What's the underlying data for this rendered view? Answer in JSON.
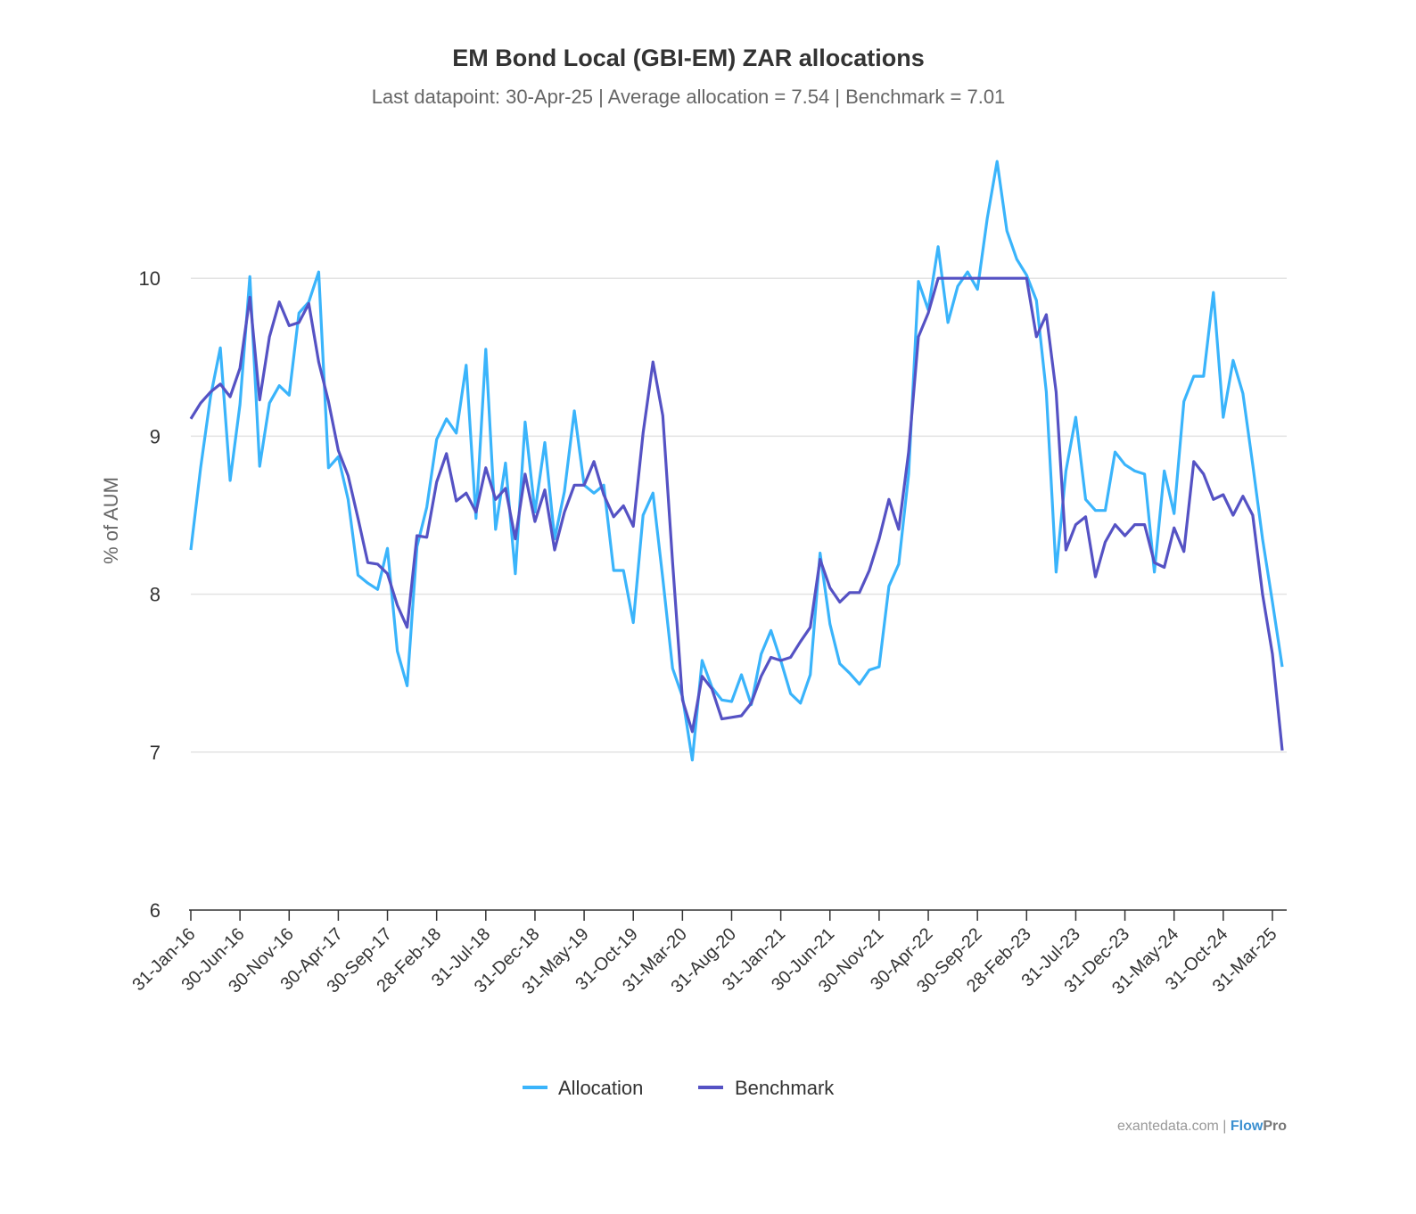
{
  "chart_data": {
    "type": "line",
    "title": "EM Bond Local (GBI-EM) ZAR allocations",
    "subtitle": "Last datapoint: 30-Apr-25 | Average allocation = 7.54 | Benchmark = 7.01",
    "xlabel": "",
    "ylabel": "% of AUM",
    "ylim": [
      6,
      11
    ],
    "yticks": [
      "6",
      "7",
      "8",
      "9",
      "10"
    ],
    "ytick_values": [
      6,
      7,
      8,
      9,
      10
    ],
    "xtick_labels": [
      "31-Jan-16",
      "30-Jun-16",
      "30-Nov-16",
      "30-Apr-17",
      "30-Sep-17",
      "28-Feb-18",
      "31-Jul-18",
      "31-Dec-18",
      "31-May-19",
      "31-Oct-19",
      "31-Mar-20",
      "31-Aug-20",
      "31-Jan-21",
      "30-Jun-21",
      "30-Nov-21",
      "30-Apr-22",
      "30-Sep-22",
      "28-Feb-23",
      "31-Jul-23",
      "31-Dec-23",
      "31-May-24",
      "31-Oct-24",
      "31-Mar-25"
    ],
    "xtick_every_n_points": 5,
    "x_range": "31-Jan-16 to 30-Apr-25 (monthly)",
    "grid": true,
    "legend_position": "bottom-center",
    "series": [
      {
        "name": "Allocation",
        "color": "#3ab4fb",
        "values": [
          8.28,
          8.8,
          9.25,
          9.56,
          8.72,
          9.2,
          10.01,
          8.81,
          9.21,
          9.32,
          9.26,
          9.78,
          9.85,
          10.04,
          8.8,
          8.87,
          8.6,
          8.12,
          8.07,
          8.03,
          8.29,
          7.64,
          7.42,
          8.3,
          8.55,
          8.98,
          9.11,
          9.02,
          9.45,
          8.48,
          9.55,
          8.41,
          8.83,
          8.13,
          9.09,
          8.52,
          8.96,
          8.35,
          8.65,
          9.16,
          8.69,
          8.64,
          8.69,
          8.15,
          8.15,
          7.82,
          8.5,
          8.64,
          8.1,
          7.53,
          7.35,
          6.95,
          7.58,
          7.41,
          7.33,
          7.32,
          7.49,
          7.3,
          7.62,
          7.77,
          7.58,
          7.37,
          7.31,
          7.49,
          8.26,
          7.81,
          7.56,
          7.5,
          7.43,
          7.52,
          7.54,
          8.05,
          8.19,
          8.76,
          9.98,
          9.8,
          10.2,
          9.72,
          9.95,
          10.04,
          9.93,
          10.38,
          10.74,
          10.3,
          10.12,
          10.02,
          9.86,
          9.28,
          8.14,
          8.78,
          9.12,
          8.6,
          8.53,
          8.53,
          8.9,
          8.82,
          8.78,
          8.76,
          8.14,
          8.78,
          8.51,
          9.22,
          9.38,
          9.38,
          9.91,
          9.12,
          9.48,
          9.27,
          8.82,
          8.35,
          7.95,
          7.54
        ]
      },
      {
        "name": "Benchmark",
        "color": "#5552c4",
        "values": [
          9.11,
          9.21,
          9.28,
          9.33,
          9.25,
          9.43,
          9.88,
          9.23,
          9.63,
          9.85,
          9.7,
          9.72,
          9.84,
          9.47,
          9.22,
          8.91,
          8.75,
          8.48,
          8.2,
          8.19,
          8.13,
          7.93,
          7.79,
          8.37,
          8.36,
          8.71,
          8.89,
          8.59,
          8.64,
          8.52,
          8.8,
          8.6,
          8.67,
          8.35,
          8.76,
          8.46,
          8.66,
          8.28,
          8.52,
          8.69,
          8.69,
          8.84,
          8.63,
          8.49,
          8.56,
          8.43,
          9.02,
          9.47,
          9.13,
          8.2,
          7.33,
          7.13,
          7.48,
          7.4,
          7.21,
          7.22,
          7.23,
          7.31,
          7.48,
          7.6,
          7.58,
          7.6,
          7.7,
          7.79,
          8.22,
          8.04,
          7.95,
          8.01,
          8.01,
          8.15,
          8.35,
          8.6,
          8.41,
          8.9,
          9.63,
          9.78,
          10.0,
          10.0,
          10.0,
          10.0,
          10.0,
          10.0,
          10.0,
          10.0,
          10.0,
          10.0,
          9.63,
          9.77,
          9.28,
          8.28,
          8.44,
          8.49,
          8.11,
          8.33,
          8.44,
          8.37,
          8.44,
          8.44,
          8.2,
          8.17,
          8.42,
          8.27,
          8.84,
          8.76,
          8.6,
          8.63,
          8.5,
          8.62,
          8.5,
          8.0,
          7.62,
          7.01
        ]
      }
    ]
  },
  "credit": {
    "site": "exantedata.com",
    "separator": " | ",
    "brand_a": "Flow",
    "brand_b": "Pro",
    "brand_a_color": "#3a8fd0",
    "brand_b_color": "#777777"
  }
}
